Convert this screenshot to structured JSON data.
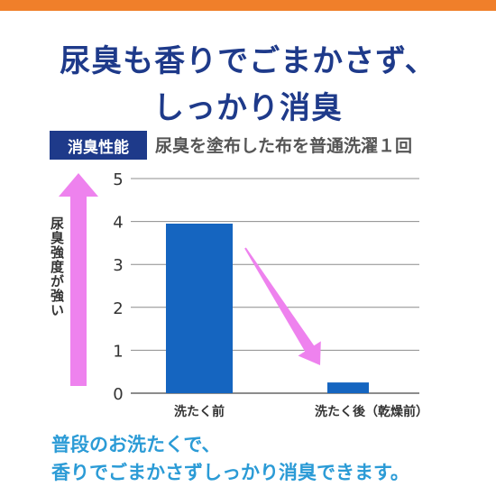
{
  "header": {
    "line1": "尿臭も香りでごまかさず、",
    "line2": "しっかり消臭"
  },
  "badge": {
    "label": "消臭性能"
  },
  "test_description": "尿臭を塗布した布を普通洗濯１回",
  "footer": {
    "line1": "普段のお洗たくで、",
    "line2": "香りでごまかさずしっかり消臭できます。"
  },
  "colors": {
    "bar": "#1565c0",
    "accent_strip": "#f07f2a",
    "headline": "#1e3a8a",
    "arrow_pink": "#ee82ee",
    "footer_text": "#2b9bd6"
  },
  "chart_data": {
    "type": "bar",
    "categories": [
      "洗たく前",
      "洗たく後（乾燥前）"
    ],
    "values": [
      3.95,
      0.25
    ],
    "ylabel": "尿臭強度が強い",
    "yticks": [
      "0",
      "1",
      "2",
      "3",
      "4",
      "5"
    ],
    "ylim": [
      0,
      5
    ],
    "grid": true
  }
}
